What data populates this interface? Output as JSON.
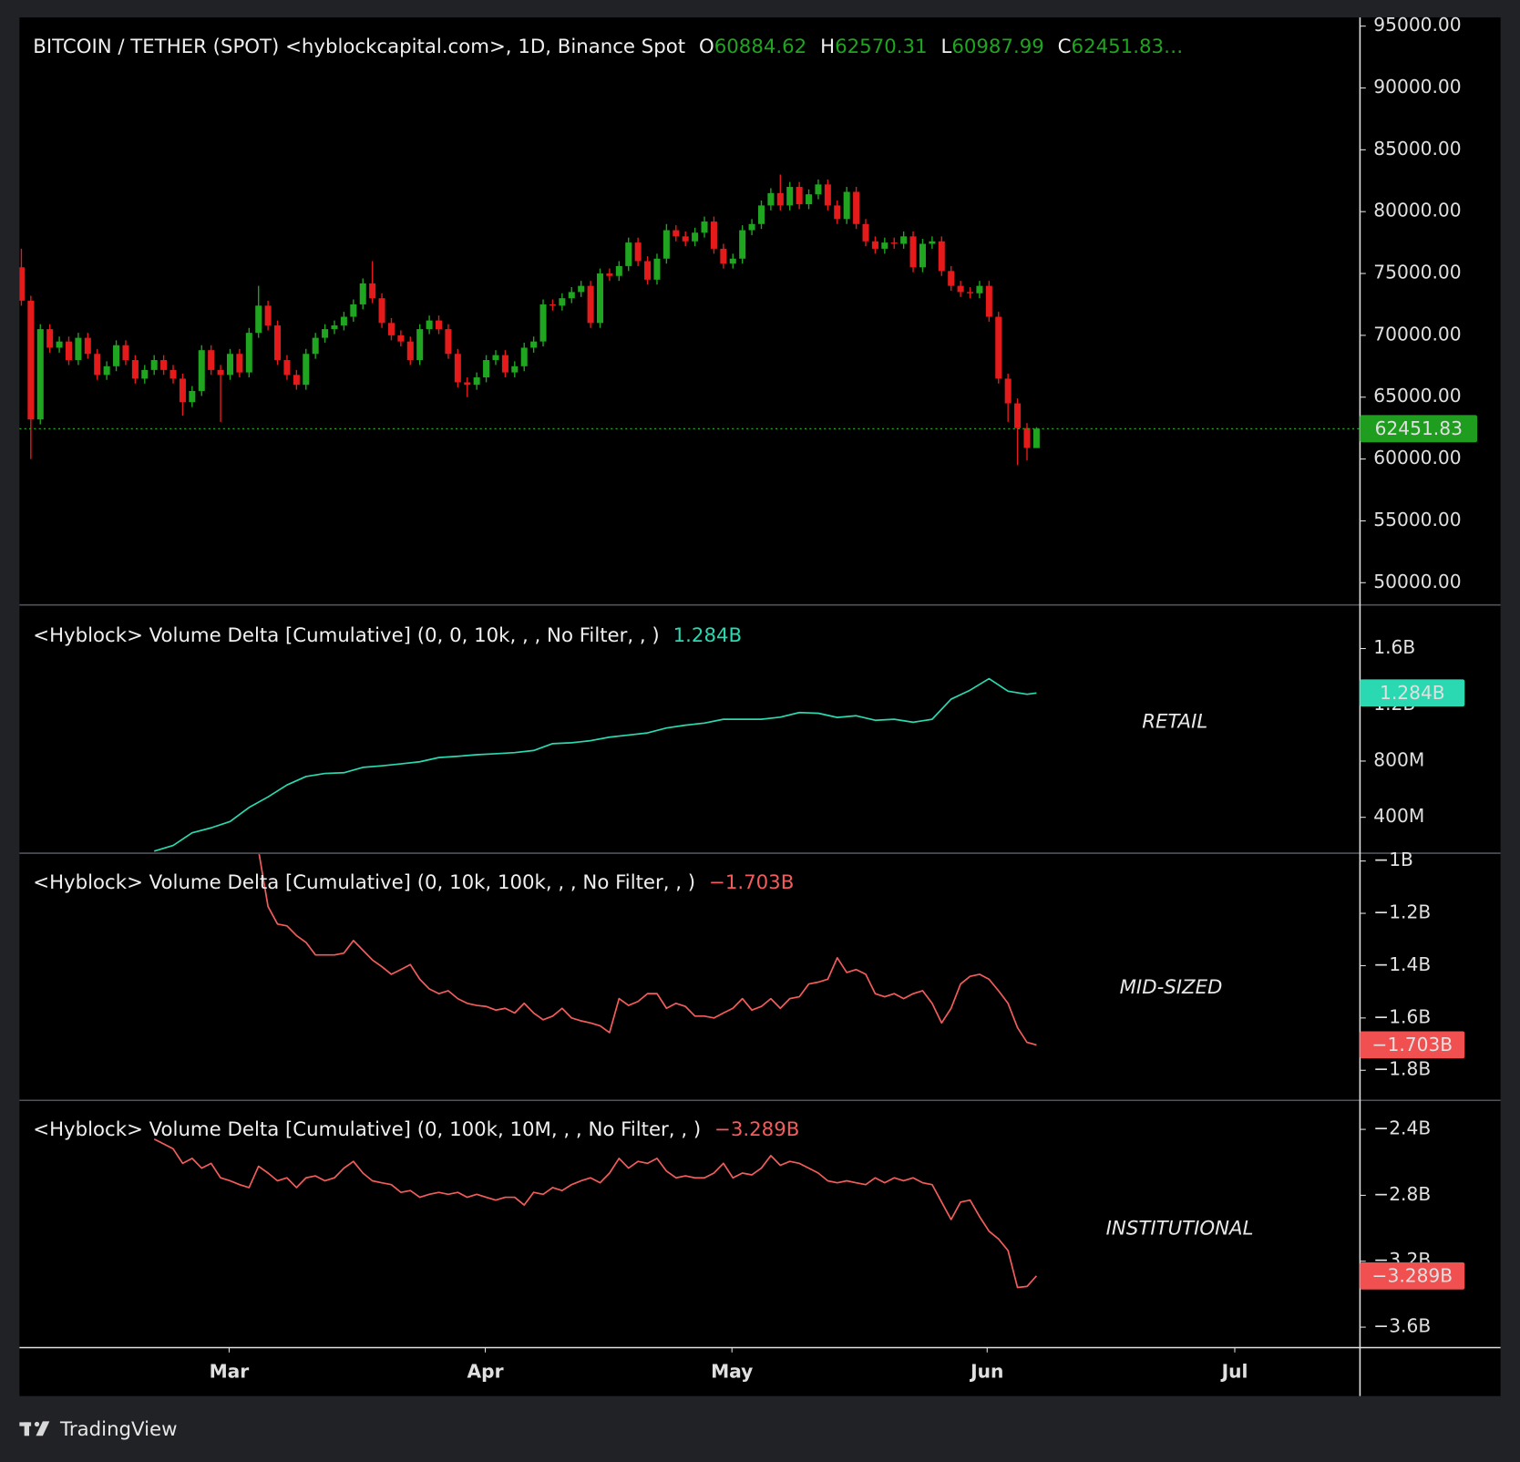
{
  "chart_data": [
    {
      "type": "candlestick",
      "title": "BITCOIN / TETHER (SPOT) <hyblockcapital.com>, 1D, Binance Spot",
      "ohlc_labels": [
        "O",
        "H",
        "L",
        "C"
      ],
      "truncation_mark": "…",
      "up_color": "#1fa51f",
      "down_color": "#e51b1b",
      "ylim": [
        48200,
        95700
      ],
      "yticks": [
        {
          "value": 50000,
          "label": "50000.00"
        },
        {
          "value": 55000,
          "label": "55000.00"
        },
        {
          "value": 60000,
          "label": "60000.00"
        },
        {
          "value": 65000,
          "label": "65000.00"
        },
        {
          "value": 70000,
          "label": "70000.00"
        },
        {
          "value": 75000,
          "label": "75000.00"
        },
        {
          "value": 80000,
          "label": "80000.00"
        },
        {
          "value": 85000,
          "label": "85000.00"
        },
        {
          "value": 90000,
          "label": "90000.00"
        },
        {
          "value": 95000,
          "label": "95000.00"
        }
      ],
      "xlim": [
        -0.2,
        141.1
      ],
      "xticks": [
        {
          "value": 21.9,
          "label": "Mar"
        },
        {
          "value": 48.9,
          "label": "Apr"
        },
        {
          "value": 74.9,
          "label": "May"
        },
        {
          "value": 101.8,
          "label": "Jun"
        },
        {
          "value": 127.9,
          "label": "Jul"
        }
      ],
      "open": [
        75500,
        72800,
        63200,
        70500,
        69000,
        69500,
        68000,
        69800,
        68500,
        66800,
        67500,
        69200,
        68000,
        66500,
        67200,
        68000,
        67200,
        66500,
        64600,
        65500,
        68800,
        67200,
        66800,
        68500,
        67000,
        70200,
        72400,
        70800,
        68000,
        66800,
        66000,
        68500,
        69800,
        70500,
        70800,
        71500,
        72500,
        74200,
        73000,
        71000,
        70000,
        69500,
        68000,
        70500,
        71200,
        70500,
        68500,
        66200,
        66000,
        66600,
        68000,
        68400,
        67000,
        67500,
        69000,
        69500,
        72500,
        72400,
        73000,
        73500,
        74000,
        71000,
        75000,
        74800,
        75600,
        77500,
        76000,
        74500,
        76200,
        78500,
        78000,
        77600,
        78300,
        79200,
        77000,
        75800,
        76200,
        78500,
        79000,
        80500,
        81500,
        80500,
        82000,
        80600,
        81400,
        82200,
        80500,
        79400,
        81600,
        79000,
        77600,
        77000,
        77500,
        77400,
        78000,
        75500,
        77400,
        77600,
        75200,
        74000,
        73500,
        73400,
        74000,
        71500,
        66500,
        64500,
        62500,
        60884.62
      ],
      "high": [
        77000,
        73200,
        70900,
        70900,
        69900,
        69900,
        70200,
        70200,
        68900,
        67900,
        69600,
        69600,
        68400,
        67600,
        68400,
        68400,
        67600,
        66900,
        65900,
        69200,
        69200,
        67600,
        68900,
        68900,
        70600,
        74000,
        72800,
        71200,
        68400,
        67200,
        68900,
        70200,
        70900,
        71200,
        71900,
        72900,
        74600,
        76000,
        73400,
        71400,
        70400,
        69900,
        70900,
        71600,
        71600,
        70900,
        68900,
        66600,
        67000,
        68400,
        68800,
        68800,
        67900,
        69400,
        69900,
        72900,
        72900,
        73400,
        73900,
        74400,
        74400,
        75400,
        75400,
        76000,
        77900,
        77900,
        76400,
        76600,
        79000,
        78900,
        78400,
        78700,
        79600,
        79600,
        77400,
        76600,
        78900,
        79400,
        80900,
        81900,
        83000,
        82400,
        82400,
        81800,
        82600,
        82600,
        80900,
        82000,
        82000,
        79400,
        78000,
        77900,
        77900,
        78400,
        78400,
        77800,
        78000,
        78000,
        75600,
        74400,
        73900,
        74400,
        74400,
        71900,
        66900,
        64900,
        62900,
        62570.31
      ],
      "low": [
        72400,
        60000,
        62800,
        68600,
        68600,
        67600,
        67600,
        68100,
        66400,
        66400,
        67100,
        67600,
        66100,
        66100,
        66800,
        66800,
        66100,
        63500,
        64200,
        65100,
        66800,
        63000,
        66400,
        66600,
        66600,
        69800,
        70400,
        67600,
        66400,
        65600,
        65600,
        68100,
        69400,
        70100,
        70400,
        71100,
        72100,
        72600,
        70600,
        69600,
        69100,
        67600,
        67600,
        70100,
        70100,
        68100,
        65800,
        65000,
        65600,
        66200,
        67600,
        66600,
        66600,
        67100,
        68600,
        69100,
        72000,
        72000,
        72600,
        73100,
        70600,
        70600,
        74400,
        74400,
        75200,
        75600,
        74100,
        74100,
        75800,
        77600,
        77200,
        77200,
        77900,
        76600,
        75400,
        75400,
        75800,
        78100,
        78600,
        80100,
        80100,
        80100,
        80200,
        80200,
        81000,
        80100,
        79000,
        79000,
        78600,
        77200,
        76600,
        76600,
        77000,
        77000,
        75100,
        75100,
        77000,
        74800,
        73600,
        73100,
        73000,
        73000,
        71100,
        66100,
        63000,
        59500,
        59900,
        60987.99
      ],
      "close": [
        72800,
        63200,
        70500,
        69000,
        69500,
        68000,
        69800,
        68500,
        66800,
        67500,
        69200,
        68000,
        66500,
        67200,
        68000,
        67200,
        66500,
        64600,
        65500,
        68800,
        67200,
        66800,
        68500,
        67000,
        70200,
        72400,
        70800,
        68000,
        66800,
        66000,
        68500,
        69800,
        70500,
        70800,
        71500,
        72500,
        74200,
        73000,
        71000,
        70000,
        69500,
        68000,
        70500,
        71200,
        70500,
        68500,
        66200,
        66000,
        66600,
        68000,
        68400,
        67000,
        67500,
        69000,
        69500,
        72500,
        72400,
        73000,
        73500,
        74000,
        71000,
        75000,
        74800,
        75600,
        77500,
        76000,
        74500,
        76200,
        78500,
        78000,
        77600,
        78300,
        79200,
        77000,
        75800,
        76200,
        78500,
        79000,
        80500,
        81500,
        80500,
        82000,
        80600,
        81400,
        82200,
        80500,
        79400,
        81600,
        79000,
        77600,
        77000,
        77500,
        77400,
        78000,
        75500,
        77400,
        77600,
        75200,
        74000,
        73500,
        73400,
        74000,
        71500,
        66500,
        64500,
        62500,
        60900,
        62451.83
      ]
    },
    {
      "type": "line",
      "title": "<Hyblock> Volume Delta [Cumulative] (0, 0, 10k, , , No Filter, , )",
      "current_label": "1.284B",
      "annotation": "RETAIL",
      "color": "#2ad9b1",
      "ylim": [
        145000000.0,
        1903000000.0
      ],
      "yticks": [
        {
          "value": 400000000.0,
          "label": "400M"
        },
        {
          "value": 800000000.0,
          "label": "800M"
        },
        {
          "value": 1200000000.0,
          "label": "1.2B"
        },
        {
          "value": 1600000000.0,
          "label": "1.6B"
        }
      ],
      "x": [
        14,
        16,
        18,
        20,
        22,
        24,
        26,
        28,
        30,
        32,
        34,
        36,
        38,
        40,
        42,
        44,
        46,
        48,
        50,
        52,
        54,
        56,
        58,
        60,
        62,
        64,
        66,
        68,
        70,
        72,
        74,
        76,
        78,
        80,
        82,
        84,
        86,
        88,
        90,
        92,
        94,
        96,
        98,
        100,
        102,
        104,
        106,
        107
      ],
      "values": [
        159000000.0,
        200000000.0,
        290000000.0,
        325000000.0,
        370000000.0,
        470000000.0,
        545000000.0,
        630000000.0,
        690000000.0,
        712000000.0,
        717000000.0,
        755000000.0,
        766000000.0,
        780000000.0,
        795000000.0,
        825000000.0,
        834000000.0,
        845000000.0,
        852000000.0,
        860000000.0,
        875000000.0,
        924000000.0,
        930000000.0,
        945000000.0,
        970000000.0,
        985000000.0,
        1000000000.0,
        1035000000.0,
        1055000000.0,
        1070000000.0,
        1097000000.0,
        1097000000.0,
        1097000000.0,
        1112000000.0,
        1145000000.0,
        1140000000.0,
        1110000000.0,
        1122000000.0,
        1090000000.0,
        1097000000.0,
        1076000000.0,
        1097000000.0,
        1240000000.0,
        1304000000.0,
        1386000000.0,
        1297000000.0,
        1275000000.0,
        1284000000.0
      ]
    },
    {
      "type": "line",
      "title": "<Hyblock> Volume Delta [Cumulative] (0, 10k, 100k, , , No Filter, , )",
      "current_label": "−1.703B",
      "annotation": "MID-SIZED",
      "color": "#f25c5c",
      "ylim": [
        -1915000000.0,
        -970000000.0
      ],
      "yticks": [
        {
          "value": -1800000000.0,
          "label": "−1.8B"
        },
        {
          "value": -1600000000.0,
          "label": "−1.6B"
        },
        {
          "value": -1400000000.0,
          "label": "−1.4B"
        },
        {
          "value": -1200000000.0,
          "label": "−1.2B"
        },
        {
          "value": -1000000000.0,
          "label": "−1B"
        }
      ],
      "x": [
        25,
        26,
        27,
        28,
        29,
        30,
        31,
        32,
        33,
        34,
        35,
        36,
        37,
        38,
        39,
        40,
        41,
        42,
        43,
        44,
        45,
        46,
        47,
        48,
        49,
        50,
        51,
        52,
        53,
        54,
        55,
        56,
        57,
        58,
        59,
        60,
        61,
        62,
        63,
        64,
        65,
        66,
        67,
        68,
        69,
        70,
        71,
        72,
        73,
        74,
        75,
        76,
        77,
        78,
        79,
        80,
        81,
        82,
        83,
        84,
        85,
        86,
        87,
        88,
        89,
        90,
        91,
        92,
        93,
        94,
        95,
        96,
        97,
        98,
        99,
        100,
        101,
        102,
        103,
        104,
        105,
        106,
        107
      ],
      "values": [
        -960000000.0,
        -1174000000.0,
        -1241000000.0,
        -1248000000.0,
        -1285000000.0,
        -1311000000.0,
        -1359000000.0,
        -1359000000.0,
        -1359000000.0,
        -1352000000.0,
        -1304000000.0,
        -1341000000.0,
        -1378000000.0,
        -1404000000.0,
        -1433000000.0,
        -1415000000.0,
        -1396000000.0,
        -1452000000.0,
        -1489000000.0,
        -1507000000.0,
        -1496000000.0,
        -1526000000.0,
        -1544000000.0,
        -1552000000.0,
        -1556000000.0,
        -1570000000.0,
        -1563000000.0,
        -1581000000.0,
        -1544000000.0,
        -1581000000.0,
        -1607000000.0,
        -1593000000.0,
        -1563000000.0,
        -1600000000.0,
        -1611000000.0,
        -1619000000.0,
        -1630000000.0,
        -1656000000.0,
        -1526000000.0,
        -1552000000.0,
        -1537000000.0,
        -1507000000.0,
        -1507000000.0,
        -1563000000.0,
        -1544000000.0,
        -1556000000.0,
        -1593000000.0,
        -1593000000.0,
        -1600000000.0,
        -1581000000.0,
        -1563000000.0,
        -1526000000.0,
        -1570000000.0,
        -1556000000.0,
        -1526000000.0,
        -1563000000.0,
        -1526000000.0,
        -1519000000.0,
        -1470000000.0,
        -1463000000.0,
        -1452000000.0,
        -1370000000.0,
        -1426000000.0,
        -1415000000.0,
        -1433000000.0,
        -1507000000.0,
        -1519000000.0,
        -1507000000.0,
        -1526000000.0,
        -1507000000.0,
        -1496000000.0,
        -1544000000.0,
        -1619000000.0,
        -1563000000.0,
        -1470000000.0,
        -1441000000.0,
        -1433000000.0,
        -1452000000.0,
        -1496000000.0,
        -1544000000.0,
        -1637000000.0,
        -1693000000.0,
        -1703000000.0
      ]
    },
    {
      "type": "line",
      "title": "<Hyblock> Volume Delta [Cumulative] (0, 100k, 10M, , , No Filter, , )",
      "current_label": "−3.289B",
      "annotation": "INSTITUTIONAL",
      "color": "#f25c5c",
      "ylim": [
        -3724000000.0,
        -2224000000.0
      ],
      "yticks": [
        {
          "value": -3600000000.0,
          "label": "−3.6B"
        },
        {
          "value": -3200000000.0,
          "label": "−3.2B"
        },
        {
          "value": -2800000000.0,
          "label": "−2.8B"
        },
        {
          "value": -2400000000.0,
          "label": "−2.4B"
        }
      ],
      "x": [
        14,
        15,
        16,
        17,
        18,
        19,
        20,
        21,
        22,
        23,
        24,
        25,
        26,
        27,
        28,
        29,
        30,
        31,
        32,
        33,
        34,
        35,
        36,
        37,
        38,
        39,
        40,
        41,
        42,
        43,
        44,
        45,
        46,
        47,
        48,
        49,
        50,
        51,
        52,
        53,
        54,
        55,
        56,
        57,
        58,
        59,
        60,
        61,
        62,
        63,
        64,
        65,
        66,
        67,
        68,
        69,
        70,
        71,
        72,
        73,
        74,
        75,
        76,
        77,
        78,
        79,
        80,
        81,
        82,
        83,
        84,
        85,
        86,
        87,
        88,
        89,
        90,
        91,
        92,
        93,
        94,
        95,
        96,
        97,
        98,
        99,
        100,
        101,
        102,
        103,
        104,
        105,
        106,
        107
      ],
      "values": [
        -2459000000.0,
        -2488000000.0,
        -2518000000.0,
        -2606000000.0,
        -2576000000.0,
        -2635000000.0,
        -2606000000.0,
        -2694000000.0,
        -2712000000.0,
        -2735000000.0,
        -2753000000.0,
        -2624000000.0,
        -2665000000.0,
        -2712000000.0,
        -2694000000.0,
        -2753000000.0,
        -2694000000.0,
        -2682000000.0,
        -2712000000.0,
        -2694000000.0,
        -2635000000.0,
        -2594000000.0,
        -2665000000.0,
        -2712000000.0,
        -2724000000.0,
        -2735000000.0,
        -2782000000.0,
        -2771000000.0,
        -2812000000.0,
        -2794000000.0,
        -2782000000.0,
        -2794000000.0,
        -2782000000.0,
        -2812000000.0,
        -2794000000.0,
        -2812000000.0,
        -2829000000.0,
        -2812000000.0,
        -2812000000.0,
        -2859000000.0,
        -2782000000.0,
        -2794000000.0,
        -2753000000.0,
        -2771000000.0,
        -2735000000.0,
        -2712000000.0,
        -2694000000.0,
        -2724000000.0,
        -2665000000.0,
        -2576000000.0,
        -2635000000.0,
        -2594000000.0,
        -2606000000.0,
        -2576000000.0,
        -2653000000.0,
        -2694000000.0,
        -2682000000.0,
        -2694000000.0,
        -2694000000.0,
        -2665000000.0,
        -2606000000.0,
        -2694000000.0,
        -2665000000.0,
        -2676000000.0,
        -2635000000.0,
        -2559000000.0,
        -2618000000.0,
        -2594000000.0,
        -2606000000.0,
        -2635000000.0,
        -2665000000.0,
        -2712000000.0,
        -2724000000.0,
        -2712000000.0,
        -2724000000.0,
        -2735000000.0,
        -2694000000.0,
        -2724000000.0,
        -2694000000.0,
        -2712000000.0,
        -2694000000.0,
        -2724000000.0,
        -2735000000.0,
        -2841000000.0,
        -2947000000.0,
        -2841000000.0,
        -2829000000.0,
        -2929000000.0,
        -3018000000.0,
        -3065000000.0,
        -3135000000.0,
        -3359000000.0,
        -3353000000.0,
        -3289000000.0
      ]
    }
  ],
  "footer": {
    "brand": "TradingView"
  }
}
